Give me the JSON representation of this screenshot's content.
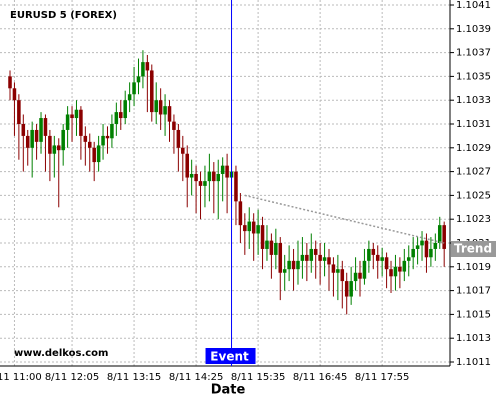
{
  "chart_data": {
    "type": "candlestick",
    "title": "EURUSD 5 (FOREX)",
    "watermark": "www.delkos.com",
    "x_label": "Date",
    "categories": [
      null,
      "8/11 11:00",
      null,
      null,
      null,
      null,
      null,
      null,
      null,
      null,
      null,
      null,
      null,
      null,
      "8/11 12:05",
      null,
      null,
      null,
      null,
      null,
      null,
      null,
      null,
      null,
      null,
      null,
      null,
      null,
      "8/11 13:15",
      null,
      null,
      null,
      null,
      null,
      null,
      null,
      null,
      null,
      null,
      null,
      null,
      null,
      "8/11 14:25",
      null,
      null,
      null,
      null,
      null,
      null,
      null,
      null,
      null,
      null,
      null,
      null,
      null,
      "8/11 15:35",
      null,
      null,
      null,
      null,
      null,
      null,
      null,
      null,
      null,
      null,
      null,
      null,
      null,
      "8/11 16:45",
      null,
      null,
      null,
      null,
      null,
      null,
      null,
      null,
      null,
      null,
      null,
      null,
      null,
      "8/11 17:55",
      null,
      null,
      null,
      null,
      null,
      null,
      null,
      null,
      null,
      null,
      null,
      null,
      null,
      null
    ],
    "open": [
      1.1035,
      1.1034,
      1.1033,
      1.1031,
      1.103,
      1.1029,
      1.10305,
      1.10295,
      1.10315,
      1.103,
      1.10285,
      1.10292,
      1.10288,
      1.10305,
      1.10318,
      1.10315,
      1.10322,
      1.103,
      1.10295,
      1.1029,
      1.10278,
      1.10292,
      1.103,
      1.10298,
      1.1031,
      1.1032,
      1.10315,
      1.1033,
      1.10335,
      1.10345,
      1.1035,
      1.10362,
      1.10355,
      1.1032,
      1.1033,
      1.10318,
      1.10325,
      1.10312,
      1.10305,
      1.1029,
      1.10285,
      1.10265,
      1.10268,
      1.10262,
      1.10258,
      1.10262,
      1.1027,
      1.10262,
      1.10268,
      1.10275,
      1.10265,
      1.1027,
      1.10245,
      1.10225,
      1.1022,
      1.10228,
      1.10218,
      1.10225,
      1.10205,
      1.10212,
      1.102,
      1.1021,
      1.10185,
      1.10188,
      1.10195,
      1.10188,
      1.10195,
      1.102,
      1.10195,
      1.10205,
      1.102,
      1.10195,
      1.10198,
      1.10192,
      1.10185,
      1.10188,
      1.10178,
      1.10165,
      1.10178,
      1.10185,
      1.1018,
      1.10195,
      1.10205,
      1.102,
      1.10195,
      1.10198,
      1.10188,
      1.10182,
      1.1019,
      1.10186,
      1.10195,
      1.10198,
      1.10205,
      1.10208,
      1.10212,
      1.10198,
      1.10205,
      1.1021,
      1.10225
    ],
    "high": [
      1.10355,
      1.10345,
      1.10335,
      1.10318,
      1.10305,
      1.10312,
      1.1031,
      1.1032,
      1.10318,
      1.10305,
      1.103,
      1.10298,
      1.1031,
      1.10325,
      1.10325,
      1.1033,
      1.10325,
      1.10308,
      1.10302,
      1.10295,
      1.103,
      1.1031,
      1.10308,
      1.10318,
      1.10328,
      1.1033,
      1.10338,
      1.10345,
      1.10358,
      1.10365,
      1.10372,
      1.10368,
      1.1036,
      1.10345,
      1.1034,
      1.10335,
      1.1033,
      1.10318,
      1.1031,
      1.103,
      1.10292,
      1.1028,
      1.10275,
      1.1027,
      1.10275,
      1.10285,
      1.10278,
      1.1028,
      1.10282,
      1.10285,
      1.1028,
      1.10275,
      1.10252,
      1.10235,
      1.1024,
      1.10235,
      1.10238,
      1.10232,
      1.10225,
      1.10218,
      1.10222,
      1.10215,
      1.102,
      1.10208,
      1.10205,
      1.10212,
      1.10215,
      1.1021,
      1.10218,
      1.10212,
      1.1021,
      1.1021,
      1.10205,
      1.10198,
      1.102,
      1.10195,
      1.10185,
      1.1019,
      1.10198,
      1.10195,
      1.10205,
      1.10212,
      1.1021,
      1.10208,
      1.10206,
      1.10202,
      1.10195,
      1.102,
      1.10198,
      1.10205,
      1.10208,
      1.10215,
      1.10215,
      1.1022,
      1.10218,
      1.10215,
      1.10218,
      1.10232,
      1.10228
    ],
    "low": [
      1.1033,
      1.103,
      1.1028,
      1.1027,
      1.10275,
      1.10265,
      1.1028,
      1.10285,
      1.1027,
      1.10262,
      1.10265,
      1.1024,
      1.10275,
      1.1029,
      1.10295,
      1.103,
      1.1028,
      1.10275,
      1.1027,
      1.10262,
      1.1027,
      1.1028,
      1.10285,
      1.1029,
      1.103,
      1.10305,
      1.1031,
      1.1032,
      1.10325,
      1.10335,
      1.1034,
      1.1032,
      1.10312,
      1.1031,
      1.10305,
      1.103,
      1.10295,
      1.10285,
      1.1027,
      1.10262,
      1.1024,
      1.1025,
      1.10235,
      1.1023,
      1.1024,
      1.10245,
      1.10235,
      1.1023,
      1.10245,
      1.10235,
      1.1024,
      1.10225,
      1.1021,
      1.102,
      1.10205,
      1.10195,
      1.102,
      1.10188,
      1.10195,
      1.1018,
      1.10188,
      1.10162,
      1.1017,
      1.10178,
      1.1017,
      1.10175,
      1.1018,
      1.10178,
      1.10185,
      1.1018,
      1.10175,
      1.10182,
      1.1017,
      1.10165,
      1.10162,
      1.10155,
      1.1015,
      1.10158,
      1.1017,
      1.10165,
      1.10175,
      1.10185,
      1.10188,
      1.1018,
      1.10182,
      1.10172,
      1.10168,
      1.1017,
      1.10172,
      1.10178,
      1.10182,
      1.10188,
      1.10192,
      1.10195,
      1.10185,
      1.1019,
      1.10195,
      1.10205,
      1.1019
    ],
    "close": [
      1.1034,
      1.1033,
      1.1031,
      1.103,
      1.1029,
      1.10305,
      1.10295,
      1.10315,
      1.103,
      1.10285,
      1.10292,
      1.10288,
      1.10305,
      1.10318,
      1.10315,
      1.10322,
      1.103,
      1.10295,
      1.1029,
      1.10278,
      1.10292,
      1.103,
      1.10298,
      1.1031,
      1.1032,
      1.10315,
      1.1033,
      1.10335,
      1.10345,
      1.1035,
      1.10362,
      1.10355,
      1.1032,
      1.1033,
      1.10318,
      1.10325,
      1.10312,
      1.10305,
      1.1029,
      1.10285,
      1.10265,
      1.10268,
      1.10262,
      1.10258,
      1.10262,
      1.1027,
      1.10262,
      1.10268,
      1.10275,
      1.10265,
      1.1027,
      1.10245,
      1.10225,
      1.1022,
      1.10228,
      1.10218,
      1.10225,
      1.10205,
      1.10212,
      1.102,
      1.1021,
      1.10185,
      1.10188,
      1.10195,
      1.10188,
      1.10195,
      1.102,
      1.10195,
      1.10205,
      1.102,
      1.10195,
      1.10198,
      1.10192,
      1.10185,
      1.10188,
      1.10178,
      1.10165,
      1.10178,
      1.10185,
      1.1018,
      1.10195,
      1.10205,
      1.102,
      1.10195,
      1.10198,
      1.10188,
      1.10182,
      1.1019,
      1.10186,
      1.10195,
      1.10198,
      1.10205,
      1.10208,
      1.10212,
      1.10198,
      1.10205,
      1.1021,
      1.10225,
      1.10205
    ],
    "up_color": "#008000",
    "down_color": "#8b0000",
    "ylim": [
      1.1011,
      1.1041
    ],
    "yticks": [
      1.1011,
      1.1013,
      1.1015,
      1.1017,
      1.1019,
      1.1021,
      1.1023,
      1.1025,
      1.1027,
      1.1029,
      1.1031,
      1.1033,
      1.1035,
      1.1037,
      1.1039,
      1.1041
    ],
    "grid": true,
    "event": {
      "label": "Event",
      "index": 50,
      "color": "#0000ff"
    },
    "trend": {
      "label": "Trend",
      "start": [
        53,
        1.1025
      ],
      "end": [
        98,
        1.1021
      ],
      "color": "#999999"
    }
  }
}
